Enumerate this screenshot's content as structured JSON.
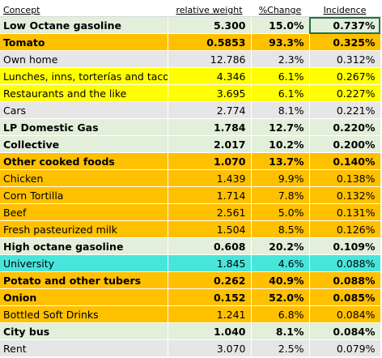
{
  "headers": {
    "concept": "Concept",
    "weight": "relative weight",
    "change": "%Change",
    "incidence": "Incidence"
  },
  "rows": [
    {
      "concept": "Low Octane gasoline",
      "weight": "5.300",
      "change": "15.0%",
      "incidence": "0.737%",
      "fill": "#e2efda",
      "bold": true
    },
    {
      "concept": "Tomato",
      "weight": "0.5853",
      "change": "93.3%",
      "incidence": "0.325%",
      "fill": "#ffc000",
      "bold": true
    },
    {
      "concept": "Own home",
      "weight": "12.786",
      "change": "2.3%",
      "incidence": "0.312%",
      "fill": "#e7e6e6",
      "bold": false
    },
    {
      "concept": "Lunches, inns, torterías and tacos",
      "weight": "4.346",
      "change": "6.1%",
      "incidence": "0.267%",
      "fill": "#ffff00",
      "bold": false
    },
    {
      "concept": "Restaurants and the like",
      "weight": "3.695",
      "change": "6.1%",
      "incidence": "0.227%",
      "fill": "#ffff00",
      "bold": false
    },
    {
      "concept": "Cars",
      "weight": "2.774",
      "change": "8.1%",
      "incidence": "0.221%",
      "fill": "#e7e6e6",
      "bold": false
    },
    {
      "concept": "LP Domestic Gas",
      "weight": "1.784",
      "change": "12.7%",
      "incidence": "0.220%",
      "fill": "#e2efda",
      "bold": true
    },
    {
      "concept": "Collective",
      "weight": "2.017",
      "change": "10.2%",
      "incidence": "0.200%",
      "fill": "#e2efda",
      "bold": true
    },
    {
      "concept": "Other cooked foods",
      "weight": "1.070",
      "change": "13.7%",
      "incidence": "0.140%",
      "fill": "#ffc000",
      "bold": true
    },
    {
      "concept": "Chicken",
      "weight": "1.439",
      "change": "9.9%",
      "incidence": "0.138%",
      "fill": "#ffc000",
      "bold": false
    },
    {
      "concept": "Corn Tortilla",
      "weight": "1.714",
      "change": "7.8%",
      "incidence": "0.132%",
      "fill": "#ffc000",
      "bold": false
    },
    {
      "concept": "Beef",
      "weight": "2.561",
      "change": "5.0%",
      "incidence": "0.131%",
      "fill": "#ffc000",
      "bold": false
    },
    {
      "concept": "Fresh pasteurized milk",
      "weight": "1.504",
      "change": "8.5%",
      "incidence": "0.126%",
      "fill": "#ffc000",
      "bold": false
    },
    {
      "concept": "High octane gasoline",
      "weight": "0.608",
      "change": "20.2%",
      "incidence": "0.109%",
      "fill": "#e2efda",
      "bold": true
    },
    {
      "concept": "University",
      "weight": "1.845",
      "change": "4.6%",
      "incidence": "0.088%",
      "fill": "#48e5db",
      "bold": false
    },
    {
      "concept": "Potato and other tubers",
      "weight": "0.262",
      "change": "40.9%",
      "incidence": "0.088%",
      "fill": "#ffc000",
      "bold": true
    },
    {
      "concept": "Onion",
      "weight": "0.152",
      "change": "52.0%",
      "incidence": "0.085%",
      "fill": "#ffc000",
      "bold": true
    },
    {
      "concept": "Bottled Soft Drinks",
      "weight": "1.241",
      "change": "6.8%",
      "incidence": "0.084%",
      "fill": "#ffc000",
      "bold": false
    },
    {
      "concept": "City bus",
      "weight": "1.040",
      "change": "8.1%",
      "incidence": "0.084%",
      "fill": "#e2efda",
      "bold": true
    },
    {
      "concept": "Rent",
      "weight": "3.070",
      "change": "2.5%",
      "incidence": "0.079%",
      "fill": "#e7e6e6",
      "bold": false
    }
  ],
  "selection": {
    "color": "#217346"
  }
}
